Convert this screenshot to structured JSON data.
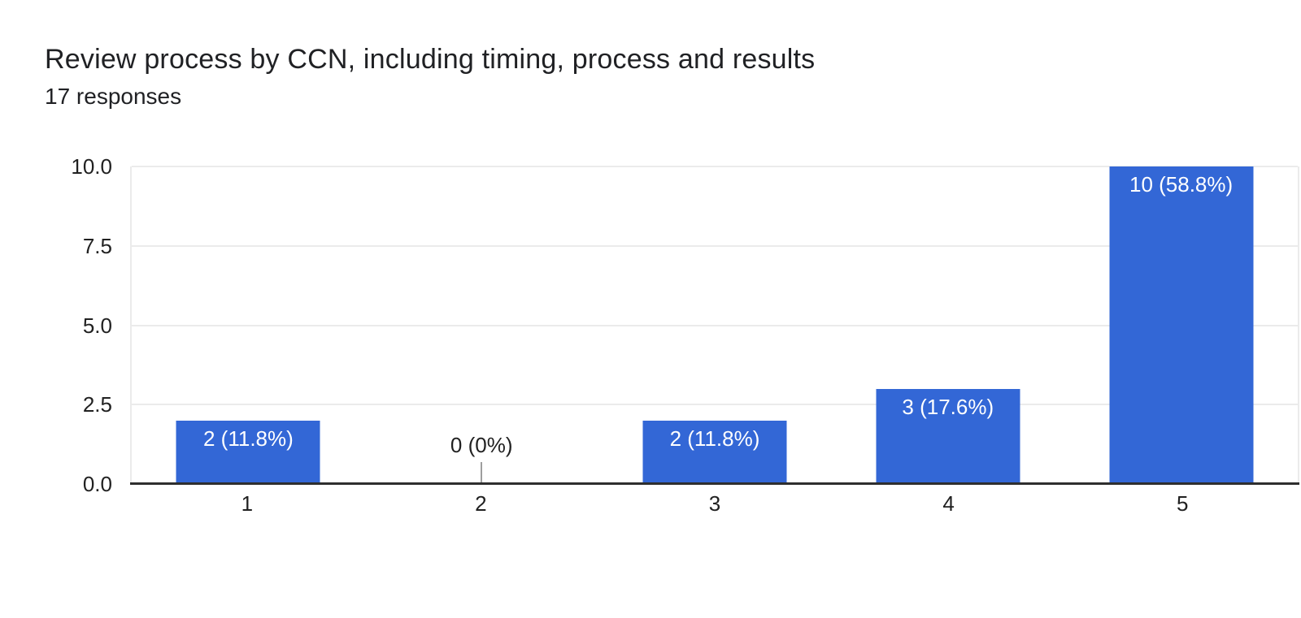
{
  "header": {
    "title": "Review process by CCN, including timing, process and results",
    "subtitle": "17 responses"
  },
  "chart_data": {
    "type": "bar",
    "title": "Review process by CCN, including timing, process and results",
    "subtitle": "17 responses",
    "total_responses": 17,
    "categories": [
      "1",
      "2",
      "3",
      "4",
      "5"
    ],
    "values": [
      2,
      0,
      2,
      3,
      10
    ],
    "percentages": [
      11.8,
      0,
      11.8,
      17.6,
      58.8
    ],
    "bar_labels": [
      "2 (11.8%)",
      "0 (0%)",
      "2 (11.8%)",
      "3 (17.6%)",
      "10 (58.8%)"
    ],
    "xlabel": "",
    "ylabel": "",
    "ylim": [
      0,
      10
    ],
    "yticks": [
      "0.0",
      "2.5",
      "5.0",
      "7.5",
      "10.0"
    ],
    "grid": true,
    "legend": false,
    "colors": {
      "bar": "#3367d6",
      "bar_label": "#ffffff",
      "gridline": "#ebebeb",
      "axis_line": "#2e2e2e",
      "tick_label": "#212121",
      "title": "#202124",
      "zero_stub": "#9e9e9e",
      "background": "#ffffff"
    }
  }
}
